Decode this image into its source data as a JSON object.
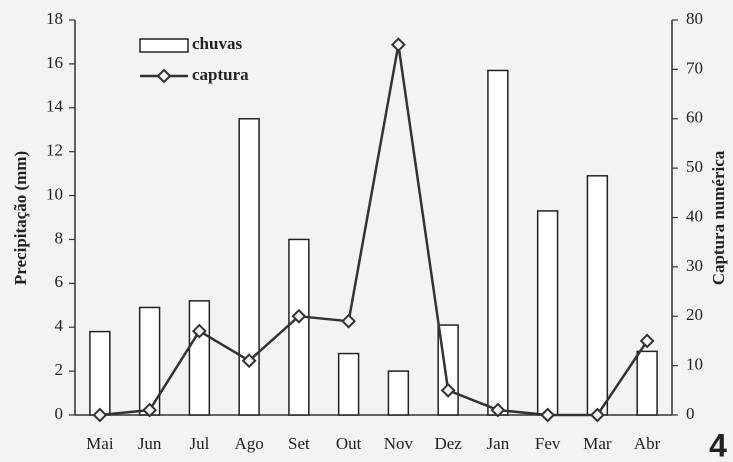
{
  "chart_data": {
    "type": "bar",
    "categories": [
      "Mai",
      "Jun",
      "Jul",
      "Ago",
      "Set",
      "Out",
      "Nov",
      "Dez",
      "Jan",
      "Fev",
      "Mar",
      "Abr"
    ],
    "series": [
      {
        "name": "chuvas",
        "type": "bar",
        "color": "#ffffff",
        "values": [
          3.8,
          4.9,
          5.2,
          13.5,
          8.0,
          2.8,
          2.0,
          4.1,
          15.7,
          9.3,
          10.9,
          2.9
        ]
      },
      {
        "name": "captura",
        "type": "line",
        "axis": "y2",
        "color": "#333333",
        "values": [
          0,
          1,
          17,
          11,
          20,
          19,
          75,
          5,
          1,
          0,
          0,
          15
        ]
      }
    ],
    "ylabel": "Precipitação (mm)",
    "y2label": "Captura numérica",
    "ylim": [
      0,
      18
    ],
    "yticks": [
      0,
      2,
      4,
      6,
      8,
      10,
      12,
      14,
      16,
      18
    ],
    "y2lim": [
      0,
      80
    ],
    "y2ticks": [
      0,
      10,
      20,
      30,
      40,
      50,
      60,
      70,
      80
    ],
    "legend": "upper left",
    "annotation": "4"
  }
}
